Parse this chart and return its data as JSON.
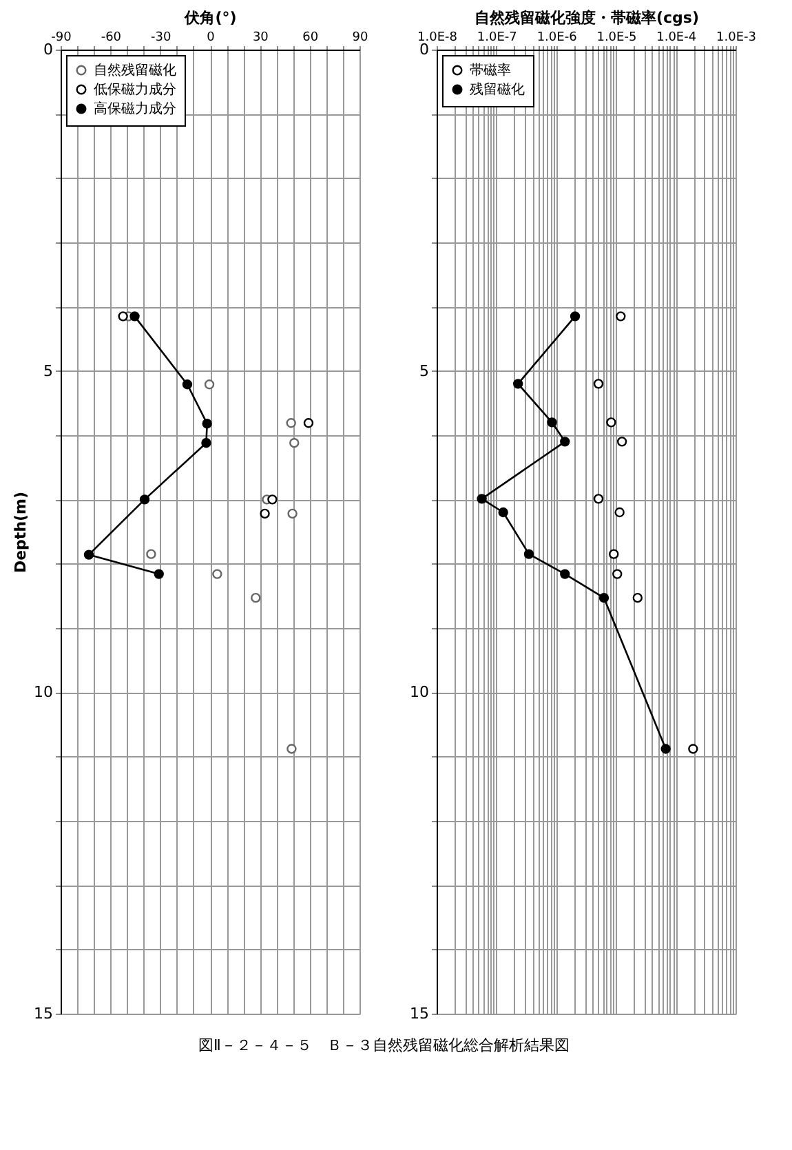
{
  "chart_data": [
    {
      "type": "scatter",
      "xlabel": "伏角(°)",
      "ylabel": "Depth(m)",
      "xlim": [
        -90,
        90
      ],
      "ylim": [
        15,
        0
      ],
      "xticks": [
        -90,
        {
          "value": -80,
          "label": null
        },
        {
          "value": -70,
          "label": null
        },
        -60,
        {
          "value": -50,
          "label": null
        },
        {
          "value": -40,
          "label": null
        },
        -30,
        {
          "value": -20,
          "label": null
        },
        {
          "value": -10,
          "label": null
        },
        0,
        {
          "value": 10,
          "label": null
        },
        {
          "value": 20,
          "label": null
        },
        30,
        {
          "value": 40,
          "label": null
        },
        {
          "value": 50,
          "label": null
        },
        60,
        {
          "value": 70,
          "label": null
        },
        {
          "value": 80,
          "label": null
        },
        90
      ],
      "yticks": [
        0,
        {
          "value": 1,
          "label": null
        },
        {
          "value": 2,
          "label": null
        },
        {
          "value": 3,
          "label": null
        },
        {
          "value": 4,
          "label": null
        },
        5,
        {
          "value": 6,
          "label": null
        },
        {
          "value": 7,
          "label": null
        },
        {
          "value": 8,
          "label": null
        },
        {
          "value": 9,
          "label": null
        },
        10,
        {
          "value": 11,
          "label": null
        },
        {
          "value": 12,
          "label": null
        },
        {
          "value": 13,
          "label": null
        },
        {
          "value": 14,
          "label": null
        },
        15
      ],
      "grid": true,
      "legend": "top left",
      "series": [
        {
          "name": "自然残留磁化",
          "type": "scatter",
          "color": "#666666",
          "x": [
            -49.1,
            -0.4,
            48.8,
            50.7,
            34.2,
            49.6,
            -35.5,
            4.3,
            27.5,
            49.1
          ],
          "values": [
            4.15,
            5.21,
            5.81,
            6.12,
            7.0,
            7.22,
            7.85,
            8.16,
            8.53,
            10.88
          ]
        },
        {
          "name": "低保磁力成分",
          "type": "scatter",
          "color": "#000000",
          "x": [
            -52.4,
            59.3,
            37.5,
            33.0
          ],
          "values": [
            4.15,
            5.81,
            7.0,
            7.22
          ]
        },
        {
          "name": "高保磁力成分",
          "type": "line",
          "marker": "circle",
          "color": "#000000",
          "x": [
            -45.4,
            -13.7,
            -1.8,
            -2.3,
            -39.4,
            -73.0,
            -30.8
          ],
          "values": [
            4.15,
            5.21,
            5.82,
            6.12,
            7.0,
            7.86,
            8.16
          ]
        }
      ]
    },
    {
      "type": "scatter",
      "xlabel": "自然残留磁化強度・帯磁率(cgs)",
      "log": "x",
      "xlim": [
        1e-08,
        0.001
      ],
      "ylim": [
        15,
        0
      ],
      "xticks": [
        {
          "value": 1e-08,
          "label": "1.0E-8"
        },
        {
          "value": 2e-08,
          "label": null
        },
        {
          "value": 3e-08,
          "label": null
        },
        {
          "value": 4e-08,
          "label": null
        },
        {
          "value": 5e-08,
          "label": null
        },
        {
          "value": 6e-08,
          "label": null
        },
        {
          "value": 7e-08,
          "label": null
        },
        {
          "value": 8e-08,
          "label": null
        },
        {
          "value": 9e-08,
          "label": null
        },
        {
          "value": 1e-07,
          "label": "1.0E-7"
        },
        {
          "value": 2e-07,
          "label": null
        },
        {
          "value": 3e-07,
          "label": null
        },
        {
          "value": 4e-07,
          "label": null
        },
        {
          "value": 5e-07,
          "label": null
        },
        {
          "value": 6e-07,
          "label": null
        },
        {
          "value": 7e-07,
          "label": null
        },
        {
          "value": 8e-07,
          "label": null
        },
        {
          "value": 9e-07,
          "label": null
        },
        {
          "value": 1e-06,
          "label": "1.0E-6"
        },
        {
          "value": 2e-06,
          "label": null
        },
        {
          "value": 3e-06,
          "label": null
        },
        {
          "value": 4e-06,
          "label": null
        },
        {
          "value": 5e-06,
          "label": null
        },
        {
          "value": 6e-06,
          "label": null
        },
        {
          "value": 7e-06,
          "label": null
        },
        {
          "value": 8e-06,
          "label": null
        },
        {
          "value": 9e-06,
          "label": null
        },
        {
          "value": 1e-05,
          "label": "1.0E-5"
        },
        {
          "value": 2e-05,
          "label": null
        },
        {
          "value": 3e-05,
          "label": null
        },
        {
          "value": 4e-05,
          "label": null
        },
        {
          "value": 5e-05,
          "label": null
        },
        {
          "value": 6e-05,
          "label": null
        },
        {
          "value": 7e-05,
          "label": null
        },
        {
          "value": 8e-05,
          "label": null
        },
        {
          "value": 9e-05,
          "label": null
        },
        {
          "value": 0.0001,
          "label": "1.0E-4"
        },
        {
          "value": 0.0002,
          "label": null
        },
        {
          "value": 0.0003,
          "label": null
        },
        {
          "value": 0.0004,
          "label": null
        },
        {
          "value": 0.0005,
          "label": null
        },
        {
          "value": 0.0006,
          "label": null
        },
        {
          "value": 0.0007,
          "label": null
        },
        {
          "value": 0.0008,
          "label": null
        },
        {
          "value": 0.0009,
          "label": null
        },
        {
          "value": 0.001,
          "label": "1.0E-3"
        }
      ],
      "yticks": [
        0,
        {
          "value": 1,
          "label": null
        },
        {
          "value": 2,
          "label": null
        },
        {
          "value": 3,
          "label": null
        },
        {
          "value": 4,
          "label": null
        },
        5,
        {
          "value": 6,
          "label": null
        },
        {
          "value": 7,
          "label": null
        },
        {
          "value": 8,
          "label": null
        },
        {
          "value": 9,
          "label": null
        },
        10,
        {
          "value": 11,
          "label": null
        },
        {
          "value": 12,
          "label": null
        },
        {
          "value": 13,
          "label": null
        },
        {
          "value": 14,
          "label": null
        },
        15
      ],
      "grid": true,
      "legend": "top left",
      "annotations": [
        "図Ⅱ－２－４－５　Ｂ－３自然残留磁化総合解析結果図"
      ],
      "series": [
        {
          "name": "帯磁率",
          "type": "scatter",
          "color": "#000000",
          "x": [
            1.2e-05,
            5.1e-06,
            8.3e-06,
            1.26e-05,
            5.1e-06,
            1.15e-05,
            9.2e-06,
            1.05e-05,
            2.3e-05,
            0.000195
          ],
          "values": [
            4.15,
            5.2,
            5.8,
            6.1,
            6.99,
            7.2,
            7.85,
            8.16,
            8.53,
            10.88
          ]
        },
        {
          "name": "残留磁化",
          "type": "line",
          "marker": "circle",
          "color": "#000000",
          "x": [
            2.07e-06,
            2.3e-07,
            8.5e-07,
            1.4e-06,
            5.7e-08,
            1.3e-07,
            3.5e-07,
            1.4e-06,
            6.3e-06,
            6.8e-05
          ],
          "values": [
            4.15,
            5.2,
            5.8,
            6.1,
            6.99,
            7.2,
            7.85,
            8.16,
            8.53,
            10.88
          ]
        }
      ]
    }
  ]
}
